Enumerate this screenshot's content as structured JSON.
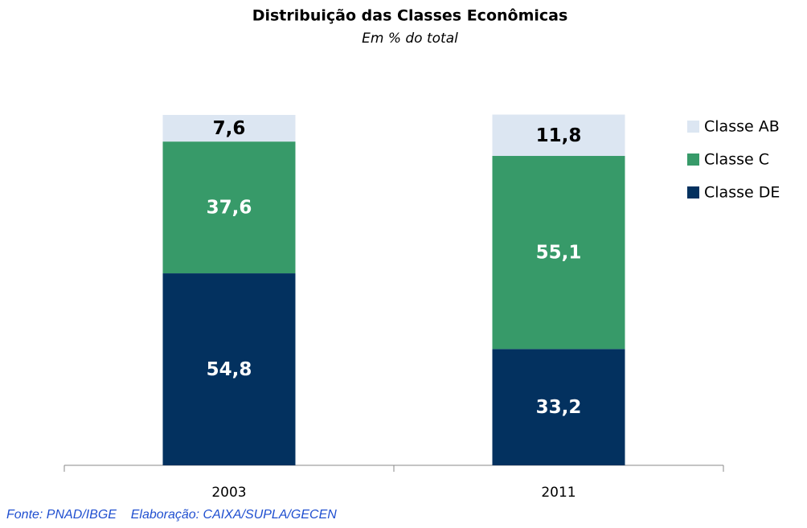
{
  "chart_data": {
    "type": "stacked_bar",
    "title": "Distribuição das Classes Econômicas",
    "subtitle": "Em % do total",
    "categories": [
      "2003",
      "2011"
    ],
    "series": [
      {
        "name": "Classe DE",
        "color": "#03315f",
        "values": [
          54.8,
          33.2
        ],
        "value_labels": [
          "54,8",
          "33,2"
        ]
      },
      {
        "name": "Classe C",
        "color": "#379a69",
        "values": [
          37.6,
          55.1
        ],
        "value_labels": [
          "37,6",
          "55,1"
        ]
      },
      {
        "name": "Classe AB",
        "color": "#dce6f2",
        "values": [
          7.6,
          11.8
        ],
        "value_labels": [
          "7,6",
          "11,8"
        ]
      }
    ],
    "ylim": [
      0,
      100
    ],
    "legend": "right",
    "note": "Fonte: PNAD/IBGE    Elaboração: CAIXA/SUPLA/GECEN"
  }
}
